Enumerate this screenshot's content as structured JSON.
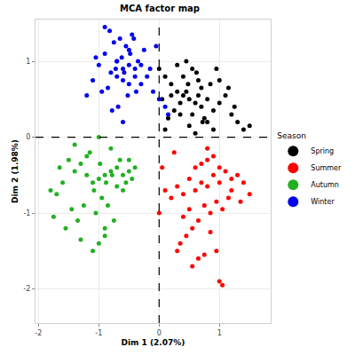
{
  "chart_data": {
    "type": "scatter",
    "title": "MCA factor map",
    "x_label": "Dim 1 (2.07%)",
    "y_label": "Dim 2 (1.98%)",
    "legend_title": "Season",
    "legend": "right",
    "grid": true,
    "marker": "circle",
    "xlim": [
      -2.05,
      1.85
    ],
    "xticks": [
      -2,
      -1,
      0,
      1
    ],
    "ylim": [
      -2.45,
      1.55
    ],
    "yticks": [
      -2,
      -1,
      0,
      1
    ],
    "hline": 0,
    "vline": 0,
    "series": [
      {
        "name": "Spring",
        "color": "#000000",
        "x": [
          0.5,
          0.6,
          0.4,
          0.3,
          0.7,
          0.8,
          0.9,
          1.0,
          0.2,
          0.1,
          0.0,
          0.55,
          0.45,
          0.65,
          0.35,
          0.75,
          1.1,
          1.2,
          1.3,
          1.4,
          1.5,
          0.25,
          0.85,
          0.95,
          0.5,
          0.6,
          0.4,
          0.3,
          0.7,
          0.15,
          0.05,
          0.2,
          0.8,
          0.9,
          1.0,
          0.45,
          0.55,
          0.65,
          1.15,
          1.25,
          0.35,
          0.62,
          0.48,
          0.72,
          0.1
        ],
        "y": [
          0.5,
          0.45,
          0.55,
          0.6,
          0.4,
          0.5,
          0.35,
          0.45,
          0.7,
          0.8,
          0.9,
          0.9,
          1.0,
          0.75,
          0.3,
          0.25,
          0.55,
          0.3,
          0.2,
          0.1,
          0.15,
          0.35,
          0.7,
          0.9,
          0.15,
          0.05,
          0.8,
          0.95,
          0.65,
          0.25,
          0.5,
          0.55,
          0.2,
          0.1,
          0.75,
          0.6,
          0.3,
          0.55,
          0.65,
          0.4,
          0.45,
          0.85,
          0.7,
          0.2,
          0.1
        ]
      },
      {
        "name": "Summer",
        "color": "#ff0000",
        "x": [
          0.7,
          0.8,
          0.6,
          0.5,
          0.9,
          1.0,
          1.1,
          1.2,
          1.3,
          1.4,
          0.4,
          0.3,
          0.2,
          0.1,
          0.05,
          0.75,
          0.85,
          0.65,
          0.55,
          0.95,
          1.05,
          1.15,
          0.45,
          0.35,
          0.7,
          0.8,
          0.6,
          0.9,
          1.0,
          0.5,
          0.4,
          0.3,
          1.2,
          1.35,
          1.5,
          0.75,
          0.65,
          0.85,
          0.55,
          0.95,
          1.0,
          1.05,
          0.0,
          0.25,
          0.8
        ],
        "y": [
          -0.6,
          -0.65,
          -0.7,
          -0.55,
          -0.5,
          -0.6,
          -0.45,
          -0.55,
          -0.5,
          -0.6,
          -0.75,
          -0.65,
          -0.8,
          -0.7,
          -0.4,
          -0.9,
          -1.0,
          -1.1,
          -1.2,
          -0.85,
          -0.95,
          -0.8,
          -1.3,
          -1.4,
          -0.35,
          -0.3,
          -0.4,
          -0.25,
          -0.4,
          -0.95,
          -1.05,
          -1.5,
          -0.7,
          -0.85,
          -0.75,
          -1.55,
          -1.6,
          -1.25,
          -1.7,
          -1.5,
          -1.9,
          -1.95,
          -1.0,
          -0.2,
          -0.15
        ]
      },
      {
        "name": "Autumn",
        "color": "#22b022",
        "x": [
          -0.9,
          -1.0,
          -0.8,
          -1.1,
          -0.7,
          -1.2,
          -1.3,
          -0.6,
          -0.5,
          -0.4,
          -1.4,
          -1.5,
          -1.6,
          -1.7,
          -1.8,
          -0.95,
          -0.85,
          -1.05,
          -0.75,
          -1.15,
          -0.65,
          -1.25,
          -0.55,
          -1.35,
          -0.45,
          -0.9,
          -1.0,
          -1.1,
          -0.8,
          -1.2,
          -1.45,
          -1.55,
          -0.7,
          -0.6,
          -1.3,
          -1.4,
          -0.98,
          -0.88,
          -1.08,
          -0.78,
          -1.65,
          -1.75,
          -0.5,
          -1.0,
          -0.9
        ],
        "y": [
          -0.5,
          -0.55,
          -0.45,
          -0.6,
          -0.4,
          -0.5,
          -0.35,
          -0.5,
          -0.45,
          -0.4,
          -0.45,
          -0.3,
          -0.6,
          -0.75,
          -0.7,
          -0.8,
          -0.9,
          -1.0,
          -1.1,
          -0.2,
          -0.3,
          -0.9,
          -0.6,
          -1.1,
          -0.55,
          -1.3,
          -1.4,
          -1.5,
          -0.15,
          -0.25,
          -0.95,
          -1.2,
          -0.65,
          -0.7,
          -1.35,
          -0.1,
          -0.35,
          -0.6,
          -0.7,
          -0.5,
          -0.4,
          -1.05,
          -0.3,
          0.0,
          -1.2
        ]
      },
      {
        "name": "Winter",
        "color": "#0000ee",
        "x": [
          -0.6,
          -0.5,
          -0.7,
          -0.8,
          -0.4,
          -0.3,
          -0.9,
          -1.0,
          -0.55,
          -0.65,
          -0.45,
          -0.75,
          -0.35,
          -0.2,
          -0.1,
          0.0,
          0.1,
          -1.1,
          -1.2,
          -0.85,
          -0.6,
          -0.5,
          -0.7,
          -0.4,
          -0.3,
          -0.95,
          -0.62,
          -0.48,
          -0.58,
          -0.72,
          -0.25,
          -0.15,
          -0.82,
          -0.9,
          -1.05,
          -0.38,
          -0.52,
          -0.68,
          -0.78,
          -0.42,
          -0.05,
          0.15,
          -0.6,
          -0.7,
          -0.5
        ],
        "y": [
          0.9,
          0.95,
          1.0,
          0.85,
          0.8,
          0.7,
          1.1,
          0.95,
          1.2,
          1.3,
          1.35,
          1.25,
          1.0,
          0.8,
          0.6,
          0.5,
          0.4,
          0.75,
          0.55,
          0.65,
          0.75,
          0.7,
          0.8,
          0.9,
          0.95,
          0.6,
          1.05,
          1.1,
          0.85,
          0.9,
          1.15,
          0.9,
          1.4,
          1.45,
          1.05,
          0.6,
          0.55,
          0.4,
          0.35,
          1.3,
          1.2,
          0.3,
          0.2,
          1.0,
          1.15
        ]
      }
    ]
  }
}
